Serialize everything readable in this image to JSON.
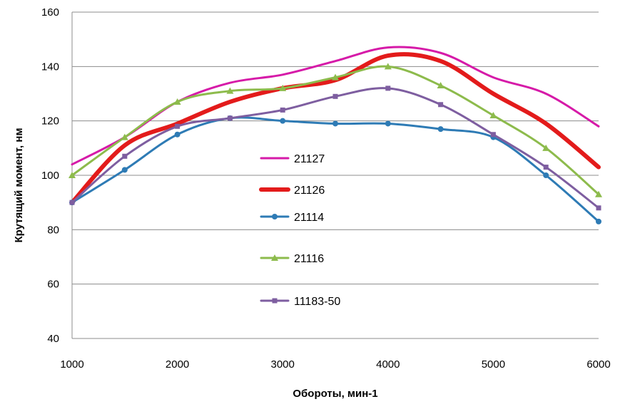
{
  "chart_data": {
    "type": "line",
    "xlabel": "Обороты, мин-1",
    "ylabel": "Крутящий момент, нм",
    "xlim": [
      1000,
      6000
    ],
    "ylim": [
      40,
      160
    ],
    "xticks": [
      1000,
      2000,
      3000,
      4000,
      5000,
      6000
    ],
    "yticks": [
      40,
      60,
      80,
      100,
      120,
      140,
      160
    ],
    "grid": "horizontal",
    "legend_position": "center",
    "series": [
      {
        "name": "21127",
        "color": "#d61aa8",
        "marker": "none",
        "x": [
          1000,
          1500,
          2000,
          2500,
          3000,
          3500,
          4000,
          4500,
          5000,
          5500,
          6000
        ],
        "values": [
          104,
          114,
          127,
          134,
          137,
          142,
          147,
          145,
          136,
          130,
          118
        ]
      },
      {
        "name": "21126",
        "color": "#e31b1b",
        "marker": "none",
        "x": [
          1000,
          1500,
          2000,
          2500,
          3000,
          3500,
          4000,
          4500,
          5000,
          5500,
          6000
        ],
        "values": [
          90,
          111,
          119,
          127,
          132,
          135,
          144,
          142,
          130,
          119,
          103
        ]
      },
      {
        "name": "21114",
        "color": "#2e7bb5",
        "marker": "circle",
        "x": [
          1000,
          1500,
          2000,
          2500,
          3000,
          3500,
          4000,
          4500,
          5000,
          5500,
          6000
        ],
        "values": [
          90,
          102,
          115,
          121,
          120,
          119,
          119,
          117,
          114,
          100,
          83
        ]
      },
      {
        "name": "21116",
        "color": "#8dbb4c",
        "marker": "triangle",
        "x": [
          1000,
          1500,
          2000,
          2500,
          3000,
          3500,
          4000,
          4500,
          5000,
          5500,
          6000
        ],
        "values": [
          100,
          114,
          127,
          131,
          132,
          136,
          140,
          133,
          122,
          110,
          93
        ]
      },
      {
        "name": "11183-50",
        "color": "#7e5ea0",
        "marker": "square",
        "x": [
          1000,
          1500,
          2000,
          2500,
          3000,
          3500,
          4000,
          4500,
          5000,
          5500,
          6000
        ],
        "values": [
          90,
          107,
          118,
          121,
          124,
          129,
          132,
          126,
          115,
          103,
          88
        ]
      }
    ]
  }
}
